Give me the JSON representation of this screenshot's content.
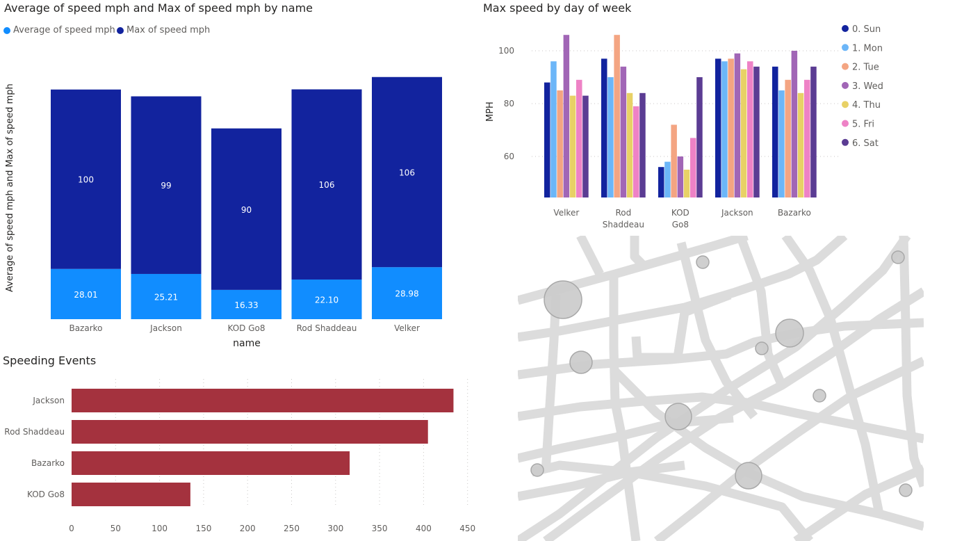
{
  "charts": {
    "c1_title": "Average of speed mph and Max of speed mph by name",
    "c1_legend_avg": "Average of speed mph",
    "c1_legend_max": "Max of speed mph",
    "c2_title": "Max speed by day of week",
    "c3_title": "Speeding Events"
  },
  "colors": {
    "avg": "#118dff",
    "max": "#12239e",
    "events": "#a4323e",
    "days": [
      "#12239e",
      "#6cb6f8",
      "#f4a582",
      "#a166b6",
      "#e8d166",
      "#ee82c6",
      "#5b3c93"
    ]
  },
  "chart_data": [
    {
      "type": "bar",
      "stacked": true,
      "title": "Average of speed mph and Max of speed mph by name",
      "categories": [
        "Bazarko",
        "Jackson",
        "KOD Go8",
        "Rod Shaddeau",
        "Velker"
      ],
      "series": [
        {
          "name": "Average of speed mph",
          "values": [
            28.01,
            25.21,
            16.33,
            22.1,
            28.98
          ],
          "labels": [
            "28.01",
            "25.21",
            "16.33",
            "22.10",
            "28.98"
          ]
        },
        {
          "name": "Max of speed mph",
          "values": [
            100,
            99,
            90,
            106,
            106
          ],
          "labels": [
            "100",
            "99",
            "90",
            "106",
            "106"
          ]
        }
      ],
      "xlabel": "name",
      "ylabel": "Average of speed mph and Max of speed mph",
      "legend": "top-left"
    },
    {
      "type": "bar",
      "title": "Max speed by day of week",
      "categories": [
        "Velker",
        "Rod Shaddeau",
        "KOD Go8",
        "Jackson",
        "Bazarko"
      ],
      "series": [
        {
          "name": "0. Sun",
          "values": [
            88,
            97,
            56,
            97,
            94
          ]
        },
        {
          "name": "1. Mon",
          "values": [
            96,
            90,
            58,
            96,
            85
          ]
        },
        {
          "name": "2. Tue",
          "values": [
            85,
            106,
            72,
            97,
            89
          ]
        },
        {
          "name": "3. Wed",
          "values": [
            106,
            94,
            60,
            99,
            100
          ]
        },
        {
          "name": "4. Thu",
          "values": [
            83,
            84,
            55,
            93,
            84
          ]
        },
        {
          "name": "5. Fri",
          "values": [
            89,
            79,
            67,
            96,
            89
          ]
        },
        {
          "name": "6. Sat",
          "values": [
            83,
            84,
            90,
            94,
            94
          ]
        }
      ],
      "ylabel": "MPH",
      "yticks": [
        60,
        80,
        100
      ],
      "ylim": [
        45,
        106
      ],
      "grid": true,
      "legend": "right"
    },
    {
      "type": "bar",
      "orientation": "horizontal",
      "title": "Speeding Events",
      "categories": [
        "Jackson",
        "Rod Shaddeau",
        "Bazarko",
        "KOD Go8"
      ],
      "values": [
        434,
        405,
        316,
        135
      ],
      "xticks": [
        0,
        50,
        100,
        150,
        200,
        250,
        300,
        350,
        400,
        450
      ],
      "xlim": [
        0,
        450
      ],
      "grid": true
    }
  ]
}
